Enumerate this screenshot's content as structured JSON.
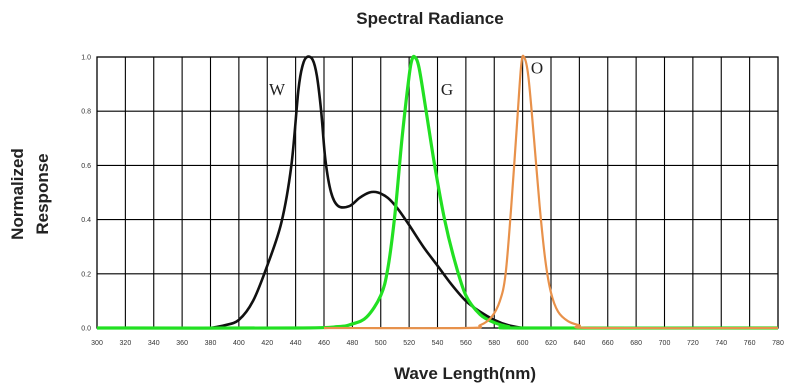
{
  "chart_data": {
    "type": "line",
    "title": "Spectral Radiance",
    "xlabel": "Wave Length(nm)",
    "ylabel": [
      "Normalized",
      "Response"
    ],
    "xlim": [
      300,
      780
    ],
    "ylim": [
      0,
      1.0
    ],
    "x_ticks": [
      "300",
      "320",
      "340",
      "360",
      "380",
      "400",
      "420",
      "440",
      "460",
      "480",
      "500",
      "520",
      "540",
      "560",
      "580",
      "600",
      "620",
      "640",
      "660",
      "680",
      "700",
      "720",
      "740",
      "760",
      "780"
    ],
    "y_ticks": [
      "0.0",
      "0.2",
      "0.4",
      "0.6",
      "0.8",
      "1.0"
    ],
    "grid": true,
    "series": [
      {
        "name": "W",
        "color": "#111111",
        "points": [
          [
            380,
            0.0
          ],
          [
            390,
            0.01
          ],
          [
            400,
            0.03
          ],
          [
            410,
            0.1
          ],
          [
            420,
            0.23
          ],
          [
            430,
            0.39
          ],
          [
            437,
            0.6
          ],
          [
            442,
            0.88
          ],
          [
            445,
            0.97
          ],
          [
            448,
            1.0
          ],
          [
            452,
            0.99
          ],
          [
            455,
            0.93
          ],
          [
            458,
            0.8
          ],
          [
            461,
            0.62
          ],
          [
            465,
            0.5
          ],
          [
            470,
            0.45
          ],
          [
            478,
            0.45
          ],
          [
            485,
            0.48
          ],
          [
            492,
            0.5
          ],
          [
            498,
            0.5
          ],
          [
            505,
            0.48
          ],
          [
            512,
            0.44
          ],
          [
            520,
            0.38
          ],
          [
            530,
            0.3
          ],
          [
            540,
            0.23
          ],
          [
            550,
            0.16
          ],
          [
            560,
            0.1
          ],
          [
            570,
            0.06
          ],
          [
            580,
            0.03
          ],
          [
            590,
            0.01
          ],
          [
            600,
            0.0
          ]
        ]
      },
      {
        "name": "G",
        "color": "#22e022",
        "points": [
          [
            300,
            0.0
          ],
          [
            440,
            0.0
          ],
          [
            470,
            0.005
          ],
          [
            480,
            0.015
          ],
          [
            490,
            0.04
          ],
          [
            500,
            0.12
          ],
          [
            505,
            0.22
          ],
          [
            510,
            0.42
          ],
          [
            515,
            0.7
          ],
          [
            520,
            0.93
          ],
          [
            522,
            0.99
          ],
          [
            524,
            1.0
          ],
          [
            527,
            0.96
          ],
          [
            532,
            0.8
          ],
          [
            538,
            0.6
          ],
          [
            545,
            0.4
          ],
          [
            552,
            0.25
          ],
          [
            560,
            0.12
          ],
          [
            570,
            0.05
          ],
          [
            580,
            0.02
          ],
          [
            590,
            0.005
          ],
          [
            600,
            0.0
          ],
          [
            780,
            0.0
          ]
        ]
      },
      {
        "name": "O",
        "color": "#e8914a",
        "points": [
          [
            460,
            0.0
          ],
          [
            560,
            0.0
          ],
          [
            570,
            0.01
          ],
          [
            578,
            0.04
          ],
          [
            584,
            0.1
          ],
          [
            588,
            0.2
          ],
          [
            592,
            0.45
          ],
          [
            596,
            0.75
          ],
          [
            599,
            0.97
          ],
          [
            601,
            1.0
          ],
          [
            604,
            0.93
          ],
          [
            608,
            0.7
          ],
          [
            612,
            0.45
          ],
          [
            616,
            0.25
          ],
          [
            620,
            0.13
          ],
          [
            625,
            0.06
          ],
          [
            632,
            0.025
          ],
          [
            640,
            0.01
          ],
          [
            650,
            0.0
          ],
          [
            780,
            0.0
          ]
        ]
      }
    ]
  }
}
